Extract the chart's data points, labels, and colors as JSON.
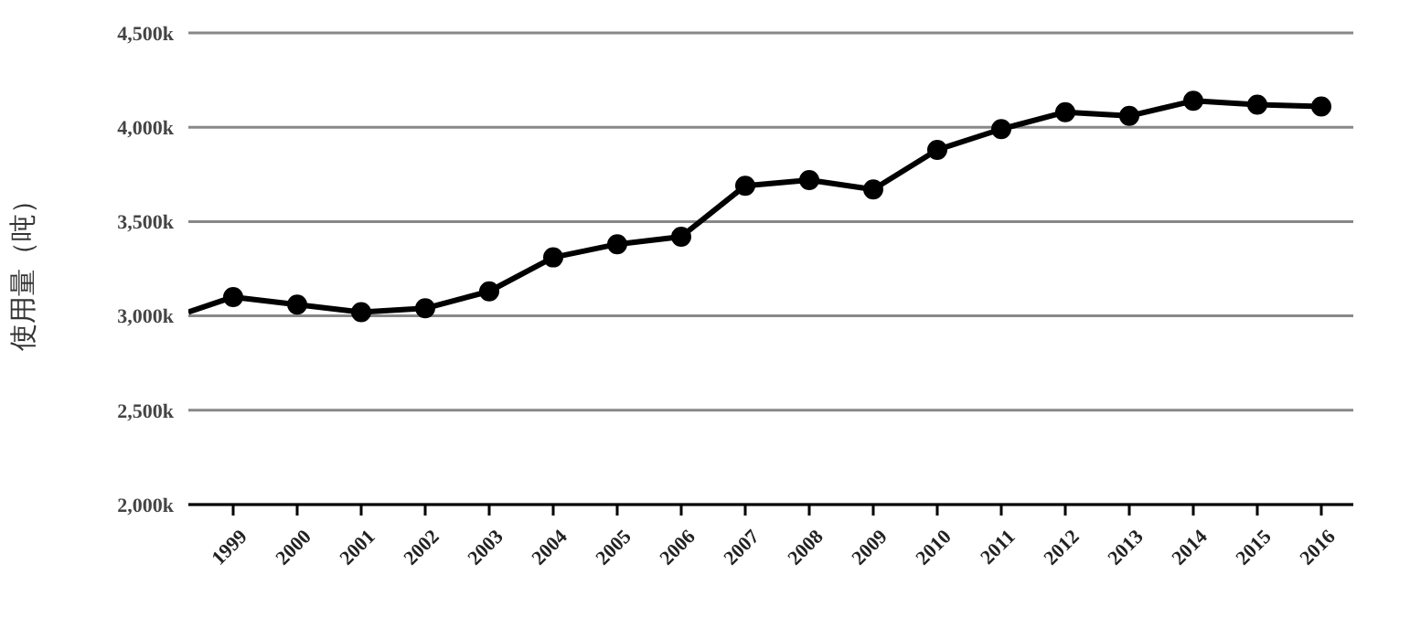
{
  "chart_data": {
    "type": "line",
    "ylabel": "使用量（吨）",
    "x": [
      1999,
      2000,
      2001,
      2002,
      2003,
      2004,
      2005,
      2006,
      2007,
      2008,
      2009,
      2010,
      2011,
      2012,
      2013,
      2014,
      2015,
      2016
    ],
    "series": [
      {
        "color": "#000000",
        "values": [
          3100,
          3060,
          3020,
          3040,
          3130,
          3310,
          3380,
          3420,
          3690,
          3720,
          3670,
          3880,
          3990,
          4080,
          4060,
          4140,
          4120,
          4110
        ]
      },
      {
        "color": "#000000",
        "marker": "none",
        "x": [
          1998.3,
          1999
        ],
        "values": [
          3020,
          3100
        ]
      }
    ],
    "xlim": [
      1998.3,
      2016.5
    ],
    "xticks": [
      1999,
      2000,
      2001,
      2002,
      2003,
      2004,
      2005,
      2006,
      2007,
      2008,
      2009,
      2010,
      2011,
      2012,
      2013,
      2014,
      2015,
      2016
    ],
    "ylim": [
      2000,
      4500
    ],
    "yticks": [
      {
        "value": 2000,
        "label": "2,000k"
      },
      {
        "value": 2500,
        "label": "2,500k"
      },
      {
        "value": 3000,
        "label": "3,000k"
      },
      {
        "value": 3500,
        "label": "3,500k"
      },
      {
        "value": 4000,
        "label": "4,000k"
      },
      {
        "value": 4500,
        "label": "4,500k"
      }
    ],
    "grid": "y",
    "marker": "circle",
    "line_style": "solid",
    "legend": false
  }
}
